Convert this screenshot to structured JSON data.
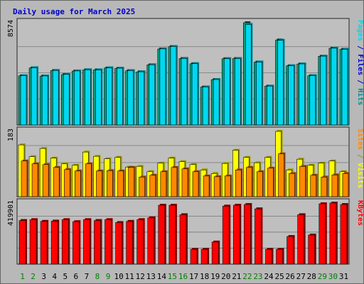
{
  "title": "Daily usage for March 2025",
  "colors": {
    "title": "#0000cc",
    "pages": "#00d8f0",
    "pages_dark": "#007f8c",
    "files": "#0000cc",
    "hits": "#008c8c",
    "visits": "#ffff00",
    "visits_dark": "#999900",
    "sites": "#ff8800",
    "sites_dark": "#994c00",
    "kbytes": "#ff0000",
    "kbytes_dark": "#800000",
    "hits_bar": "#00a080",
    "day_weekend": "#008000",
    "day_weekday": "#000000",
    "panel_bg": "#bfbfbf",
    "frame_bg": "#b8b8b8"
  },
  "chart_data": [
    {
      "type": "bar",
      "panel": "hits-files-pages",
      "ymax_label": "8574",
      "ylim": [
        0,
        8574
      ],
      "categories": [
        "1",
        "2",
        "3",
        "4",
        "5",
        "6",
        "7",
        "8",
        "9",
        "10",
        "11",
        "12",
        "13",
        "14",
        "15",
        "16",
        "17",
        "18",
        "19",
        "20",
        "21",
        "22",
        "23",
        "24",
        "25",
        "26",
        "27",
        "28",
        "29",
        "30",
        "31"
      ],
      "axis_label_parts": [
        {
          "text": "Pages",
          "color_key": "pages"
        },
        {
          "text": " / ",
          "color_key": "files"
        },
        {
          "text": "Files",
          "color_key": "files"
        },
        {
          "text": " / ",
          "color_key": "files"
        },
        {
          "text": "Hits",
          "color_key": "hits"
        }
      ],
      "series": [
        {
          "name": "Hits",
          "values": [
            4120,
            4780,
            4100,
            4560,
            4230,
            4520,
            4620,
            4620,
            4780,
            4740,
            4550,
            4450,
            5040,
            6370,
            6570,
            5570,
            5130,
            3180,
            3800,
            5550,
            5570,
            8574,
            5270,
            3250,
            7130,
            4960,
            5110,
            4130,
            5760,
            6430,
            6340
          ]
        },
        {
          "name": "Pages",
          "values": [
            4130,
            4800,
            4110,
            4570,
            4240,
            4530,
            4630,
            4620,
            4790,
            4760,
            4560,
            4460,
            5050,
            6380,
            6580,
            5580,
            5140,
            3190,
            3810,
            5560,
            5570,
            8430,
            5280,
            3260,
            7100,
            4970,
            5120,
            4140,
            5770,
            6440,
            6350
          ]
        }
      ]
    },
    {
      "type": "bar",
      "panel": "visits-sites",
      "ymax_label": "183",
      "ylim": [
        0,
        183
      ],
      "axis_label_parts": [
        {
          "text": "Sites",
          "color_key": "sites"
        },
        {
          "text": " / ",
          "color_key": "visits_dark"
        },
        {
          "text": "Visits",
          "color_key": "visits"
        }
      ],
      "series": [
        {
          "name": "Visits",
          "values": [
            145,
            112,
            135,
            108,
            92,
            88,
            125,
            113,
            106,
            110,
            83,
            85,
            70,
            94,
            108,
            98,
            90,
            75,
            65,
            93,
            130,
            110,
            95,
            110,
            183,
            75,
            105,
            88,
            94,
            100,
            70
          ]
        },
        {
          "name": "Sites",
          "values": [
            100,
            92,
            90,
            82,
            76,
            72,
            92,
            72,
            73,
            72,
            82,
            55,
            60,
            70,
            82,
            78,
            70,
            58,
            56,
            58,
            75,
            82,
            70,
            80,
            120,
            65,
            85,
            60,
            55,
            61,
            65
          ]
        }
      ]
    },
    {
      "type": "bar",
      "panel": "kbytes",
      "ymax_label": "419901",
      "ylim": [
        0,
        419901
      ],
      "axis_label_parts": [
        {
          "text": "KBytes",
          "color_key": "kbytes"
        }
      ],
      "series": [
        {
          "name": "KBytes",
          "values": [
            300000,
            306000,
            294000,
            296000,
            306000,
            292000,
            306000,
            300000,
            306000,
            286000,
            294000,
            306000,
            318000,
            405000,
            405000,
            340000,
            102000,
            102000,
            152000,
            399000,
            405000,
            410000,
            380000,
            102000,
            102000,
            190000,
            340000,
            200000,
            415000,
            419901,
            410000
          ]
        }
      ]
    }
  ]
}
